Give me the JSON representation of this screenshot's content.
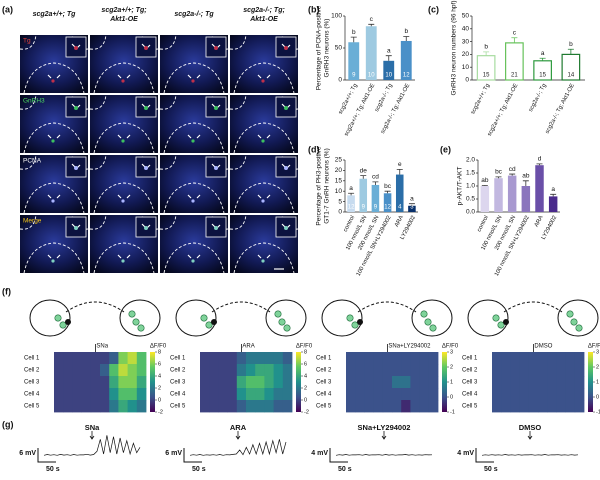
{
  "panel_labels": [
    "(a)",
    "(b)",
    "(c)",
    "(d)",
    "(e)",
    "(f)",
    "(g)"
  ],
  "micrograph": {
    "columns": [
      [
        "scg2a+/+; Tg"
      ],
      [
        "scg2a+/+; Tg;",
        "Akt1-OE"
      ],
      [
        "scg2a-/-; Tg"
      ],
      [
        "scg2a-/-; Tg;",
        "Akt1-OE"
      ]
    ],
    "rows": [
      "Tg",
      "GnRH3",
      "PCNA",
      "Merge"
    ],
    "row_colors": [
      "#e0403a",
      "#4cd964",
      "#ffffff",
      "#f5c518"
    ]
  },
  "chart_data": [
    {
      "type": "bar",
      "ylabel": [
        "Percentage of PCNA-positive",
        "GnRH3 neurons (%)"
      ],
      "categories": [
        "scg2a+/+; Tg",
        "scg2a+/+; Tg; Akt1-OE",
        "scg2a-/-; Tg",
        "scg2a-/-; Tg; Akt1-OE"
      ],
      "values": [
        59,
        84,
        30,
        61
      ],
      "errors": [
        8,
        3,
        8,
        7
      ],
      "n": [
        9,
        10,
        10,
        12
      ],
      "letters": [
        "b",
        "c",
        "a",
        "b"
      ],
      "colors": [
        "#6aaed6",
        "#9ecae1",
        "#2b6ea8",
        "#4a90c8"
      ],
      "outline": false,
      "ylim": [
        0,
        100
      ],
      "yticks": [
        0,
        50,
        100
      ]
    },
    {
      "type": "bar",
      "ylabel": [
        "GnRH3 neuron numbers (96 hpf)"
      ],
      "categories": [
        "scg2a+/+; Tg",
        "scg2a+/+; Tg; Akt1-OE",
        "scg2a-/-; Tg",
        "scg2a-/-; Tg; Akt1-OE"
      ],
      "values": [
        19,
        29,
        15,
        20
      ],
      "errors": [
        3,
        4,
        2,
        4
      ],
      "n": [
        15,
        21,
        15,
        14
      ],
      "letters": [
        "b",
        "c",
        "a",
        "b"
      ],
      "colors": [
        "#a8dca0",
        "#66c25a",
        "#2e9a3e",
        "#1f7a30"
      ],
      "outline": true,
      "ylim": [
        0,
        50
      ],
      "yticks": [
        0,
        10,
        20,
        30,
        40,
        50
      ]
    },
    {
      "type": "bar",
      "ylabel": [
        "Percentage of PH3-positive",
        "GT1-7 GnRH neurons (%)"
      ],
      "categories": [
        "control",
        "100 nmol/L SN",
        "200 nmol/L SN",
        "100 nmol/L SN+LY294002",
        "ARA",
        "LY294002"
      ],
      "values": [
        8,
        16,
        13,
        9,
        18,
        3
      ],
      "errors": [
        1,
        1.5,
        1.5,
        1,
        2.5,
        1
      ],
      "n": [
        12,
        9,
        9,
        12,
        4,
        3
      ],
      "letters": [
        "a",
        "de",
        "cd",
        "bc",
        "e",
        "a"
      ],
      "colors": [
        "#c6dbef",
        "#9ecae1",
        "#6aaed6",
        "#4a90c8",
        "#2b6ea8",
        "#08306b"
      ],
      "outline": false,
      "ylim": [
        0,
        25
      ],
      "yticks": [
        0,
        5,
        10,
        15,
        20,
        25
      ]
    },
    {
      "type": "bar",
      "ylabel": [
        "p-AKT/T-AKT"
      ],
      "categories": [
        "control",
        "100 nmol/L SN",
        "200 nmol/L SN",
        "100 nmol/L SN+LY294002",
        "ARA",
        "LY294002"
      ],
      "values": [
        1.0,
        1.3,
        1.4,
        1.0,
        1.8,
        0.6
      ],
      "errors": [
        0.02,
        0.05,
        0.06,
        0.2,
        0.05,
        0.08
      ],
      "letters": [
        "ab",
        "bc",
        "cd",
        "ab",
        "d",
        "a"
      ],
      "colors": [
        "#dcd6ee",
        "#c2b8e0",
        "#a899d0",
        "#8a75bd",
        "#6a4fa8",
        "#4a2a8c"
      ],
      "outline": false,
      "ylim": [
        0,
        2
      ],
      "yticks": [
        {
          "value": 0,
          "label": "0.0"
        },
        0.5,
        {
          "value": 1,
          "label": "1.0"
        },
        1.5,
        {
          "value": 2,
          "label": "2.0"
        }
      ]
    },
    {
      "type": "heatmap",
      "stimulus": "SNa",
      "colorbar_label": "ΔF/F0",
      "rows": [
        "Cell 1",
        "Cell 2",
        "Cell 3",
        "Cell 4",
        "Cell 5"
      ],
      "values": [
        [
          0,
          0,
          0,
          0,
          0,
          0,
          1,
          6,
          7,
          5
        ],
        [
          0,
          0,
          0,
          0,
          0,
          1,
          5,
          7,
          6,
          5
        ],
        [
          0,
          0,
          0,
          0,
          0,
          0,
          4,
          6,
          6,
          4
        ],
        [
          0,
          0,
          0,
          0,
          0,
          0,
          3,
          5,
          5,
          3
        ],
        [
          0,
          0,
          0,
          0,
          0,
          0,
          2,
          4,
          3,
          2
        ]
      ],
      "vlim": [
        -2,
        8
      ],
      "cticks": [
        8,
        6,
        4,
        2,
        0,
        -2
      ]
    },
    {
      "type": "heatmap",
      "stimulus": "ARA",
      "colorbar_label": "ΔF/F0",
      "rows": [
        "Cell 1",
        "Cell 2",
        "Cell 3",
        "Cell 4",
        "Cell 5"
      ],
      "values": [
        [
          0,
          0,
          0,
          0,
          1,
          2,
          2,
          2,
          2,
          1
        ],
        [
          0,
          0,
          0,
          0,
          2,
          3,
          4,
          4,
          3,
          2
        ],
        [
          0,
          0,
          0,
          0,
          4,
          5,
          5,
          4,
          3,
          2
        ],
        [
          0,
          0,
          0,
          0,
          3,
          4,
          4,
          3,
          2,
          2
        ],
        [
          0,
          0,
          0,
          0,
          1,
          2,
          2,
          2,
          1,
          1
        ]
      ],
      "vlim": [
        -2,
        8
      ],
      "cticks": [
        8,
        6,
        4,
        2,
        0,
        -2
      ]
    },
    {
      "type": "heatmap",
      "stimulus": "SNa+LY294002",
      "colorbar_label": "ΔF/F0",
      "rows": [
        "Cell 1",
        "Cell 2",
        "Cell 3",
        "Cell 4",
        "Cell 5"
      ],
      "values": [
        [
          0,
          0,
          0,
          0,
          0,
          0,
          0,
          0,
          0,
          0
        ],
        [
          0,
          0,
          0,
          0,
          0,
          0,
          0,
          0,
          0,
          0
        ],
        [
          0,
          0,
          0,
          0,
          0,
          0.5,
          0.5,
          0,
          0,
          0
        ],
        [
          0,
          0,
          0,
          0,
          0,
          0,
          0,
          0,
          0,
          0
        ],
        [
          0,
          0,
          0,
          0,
          0,
          0,
          -0.5,
          0,
          0,
          0
        ]
      ],
      "vlim": [
        -1,
        3
      ],
      "cticks": [
        3,
        2,
        1,
        0,
        -1
      ]
    },
    {
      "type": "heatmap",
      "stimulus": "DMSO",
      "colorbar_label": "ΔF/F0",
      "rows": [
        "Cell 1",
        "Cell 2",
        "Cell 3",
        "Cell 4",
        "Cell 5"
      ],
      "values": [
        [
          0,
          0,
          0,
          0,
          0,
          0,
          0,
          0,
          0,
          0
        ],
        [
          0,
          0,
          0,
          0,
          0,
          0,
          0,
          0,
          0,
          0
        ],
        [
          0,
          0,
          0,
          0,
          0,
          0,
          0,
          0,
          0,
          0
        ],
        [
          0,
          0,
          0,
          0,
          0,
          0,
          0,
          0,
          0,
          0
        ],
        [
          0,
          0,
          0,
          0,
          0,
          0,
          0,
          0,
          0,
          0
        ]
      ],
      "vlim": [
        -1,
        3
      ],
      "cticks": [
        3,
        2,
        1,
        0,
        -1
      ]
    },
    {
      "type": "trace",
      "stimulus": "SNa",
      "scale_y": "6 mV",
      "scale_x": "50 s",
      "ylim": [
        -2,
        16
      ],
      "values": [
        0,
        0.6,
        0.1,
        0.5,
        0,
        0.7,
        0.2,
        0.5,
        0,
        0.6,
        0.1,
        0.4,
        0.3,
        0.8,
        0.2,
        0.6,
        3,
        12,
        1,
        15,
        2,
        14,
        1,
        13,
        2,
        11,
        1,
        9,
        2,
        6
      ]
    },
    {
      "type": "trace",
      "stimulus": "ARA",
      "scale_y": "6 mV",
      "scale_x": "50 s",
      "ylim": [
        -2,
        16
      ],
      "values": [
        0,
        0.5,
        0.1,
        0.6,
        0,
        0.4,
        0.2,
        0.5,
        0.1,
        0.6,
        0,
        0.5,
        0.3,
        0.7,
        1,
        4,
        0.5,
        6,
        1,
        8,
        1,
        9,
        1,
        10,
        1,
        11,
        2,
        12,
        1,
        10
      ]
    },
    {
      "type": "trace",
      "stimulus": "SNa+LY294002",
      "scale_y": "4 mV",
      "scale_x": "50 s",
      "ylim": [
        -2,
        16
      ],
      "values": [
        0,
        0.5,
        0.2,
        0.6,
        0.1,
        0.4,
        0.3,
        0.5,
        0.1,
        0.6,
        0.2,
        0.4,
        0.3,
        0.5,
        0.1,
        0.6,
        0.2,
        0.5,
        0.1,
        0.4,
        0.3,
        0.6,
        0.2,
        0.5,
        0.1,
        0.4,
        0.2,
        0.5,
        0.3,
        0.4
      ]
    },
    {
      "type": "trace",
      "stimulus": "DMSO",
      "scale_y": "4 mV",
      "scale_x": "50 s",
      "ylim": [
        -2,
        16
      ],
      "values": [
        0,
        0.4,
        0.1,
        0.5,
        0.2,
        0.4,
        0.1,
        0.6,
        0.2,
        0.4,
        0.1,
        0.5,
        0.2,
        0.4,
        0.3,
        0.5,
        0.1,
        0.4,
        0.2,
        0.6,
        0.1,
        0.4,
        0.3,
        0.5,
        0.2,
        0.4,
        0.1,
        0.5,
        0.2,
        0.4
      ]
    }
  ]
}
